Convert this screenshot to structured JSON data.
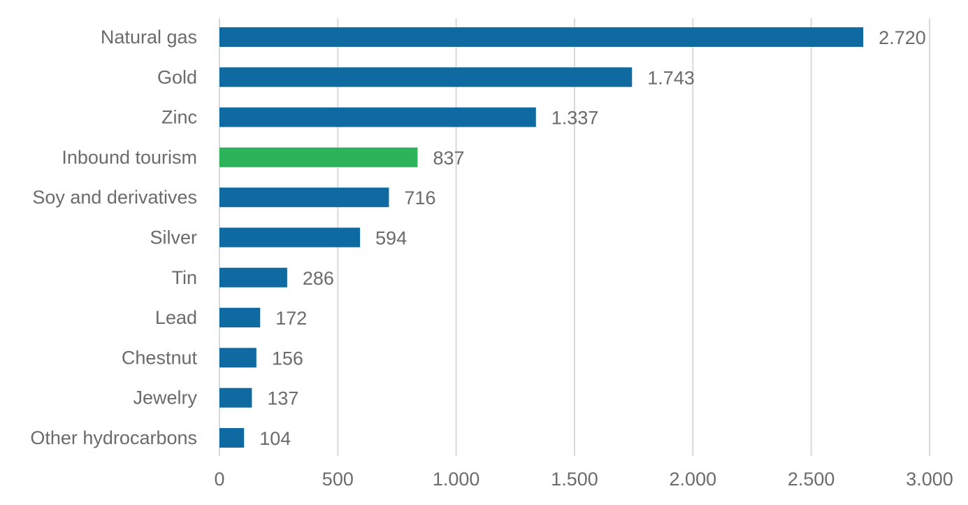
{
  "chart_data": {
    "type": "bar",
    "orientation": "horizontal",
    "title": "",
    "xlabel": "",
    "ylabel": "",
    "categories": [
      "Natural gas",
      "Gold",
      "Zinc",
      "Inbound tourism",
      "Soy and derivatives",
      "Silver",
      "Tin",
      "Lead",
      "Chestnut",
      "Jewelry",
      "Other hydrocarbons"
    ],
    "values": [
      2720,
      1743,
      1337,
      837,
      716,
      594,
      286,
      172,
      156,
      137,
      104
    ],
    "value_labels": [
      "2.720",
      "1.743",
      "1.337",
      "837",
      "716",
      "594",
      "286",
      "172",
      "156",
      "137",
      "104"
    ],
    "colors": [
      "#0e6aa0",
      "#0e6aa0",
      "#0e6aa0",
      "#2db35a",
      "#0e6aa0",
      "#0e6aa0",
      "#0e6aa0",
      "#0e6aa0",
      "#0e6aa0",
      "#0e6aa0",
      "#0e6aa0"
    ],
    "xlim": [
      0,
      3000
    ],
    "xticks": [
      0,
      500,
      1000,
      1500,
      2000,
      2500,
      3000
    ],
    "xtick_labels": [
      "0",
      "500",
      "1.000",
      "1.500",
      "2.000",
      "2.500",
      "3.000"
    ],
    "grid": "vertical",
    "legend": "none"
  }
}
